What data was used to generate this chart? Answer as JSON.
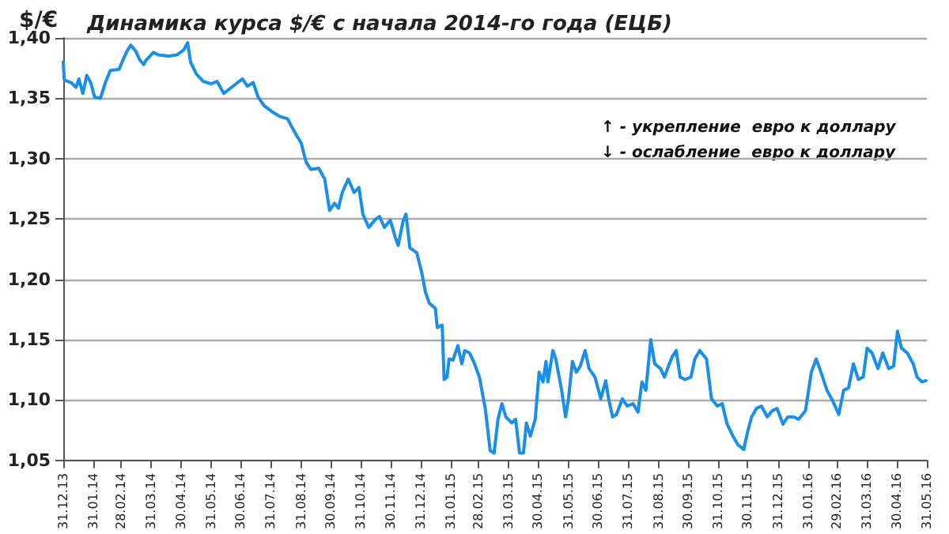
{
  "chart_data": {
    "type": "line",
    "title": "Динамика курса $/€ с начала 2014-го года (ЕЦБ)",
    "ylabel": "$/€",
    "annotations": [
      "↑ - укрепление  евро к доллару",
      "↓ - ослабление  евро к доллару"
    ],
    "x": [
      "2013-12-31",
      "2014-01-01",
      "2014-01-08",
      "2014-01-13",
      "2014-01-16",
      "2014-01-20",
      "2014-01-24",
      "2014-01-28",
      "2014-02-01",
      "2014-02-07",
      "2014-02-12",
      "2014-02-17",
      "2014-02-26",
      "2014-03-01",
      "2014-03-06",
      "2014-03-10",
      "2014-03-15",
      "2014-03-19",
      "2014-03-23",
      "2014-03-26",
      "2014-04-02",
      "2014-04-07",
      "2014-04-18",
      "2014-04-26",
      "2014-05-03",
      "2014-05-07",
      "2014-05-10",
      "2014-05-16",
      "2014-05-23",
      "2014-05-31",
      "2014-06-06",
      "2014-06-13",
      "2014-06-27",
      "2014-07-02",
      "2014-07-07",
      "2014-07-13",
      "2014-07-18",
      "2014-07-24",
      "2014-08-01",
      "2014-08-09",
      "2014-08-17",
      "2014-08-25",
      "2014-08-31",
      "2014-09-05",
      "2014-09-10",
      "2014-09-18",
      "2014-09-24",
      "2014-09-29",
      "2014-10-04",
      "2014-10-08",
      "2014-10-12",
      "2014-10-18",
      "2014-10-24",
      "2014-10-29",
      "2014-11-02",
      "2014-11-08",
      "2014-11-14",
      "2014-11-19",
      "2014-11-24",
      "2014-11-30",
      "2014-12-05",
      "2014-12-08",
      "2014-12-13",
      "2014-12-16",
      "2014-12-20",
      "2014-12-27",
      "2015-01-01",
      "2015-01-05",
      "2015-01-09",
      "2015-01-15",
      "2015-01-17",
      "2015-01-22",
      "2015-01-24",
      "2015-01-27",
      "2015-01-29",
      "2015-02-02",
      "2015-02-07",
      "2015-02-11",
      "2015-02-14",
      "2015-02-19",
      "2015-02-24",
      "2015-03-01",
      "2015-03-07",
      "2015-03-12",
      "2015-03-16",
      "2015-03-20",
      "2015-03-24",
      "2015-03-28",
      "2015-04-03",
      "2015-04-07",
      "2015-04-11",
      "2015-04-15",
      "2015-04-18",
      "2015-04-22",
      "2015-04-27",
      "2015-05-01",
      "2015-05-05",
      "2015-05-08",
      "2015-05-10",
      "2015-05-15",
      "2015-05-18",
      "2015-05-24",
      "2015-05-28",
      "2015-05-31",
      "2015-06-04",
      "2015-06-08",
      "2015-06-12",
      "2015-06-17",
      "2015-06-21",
      "2015-06-27",
      "2015-07-03",
      "2015-07-08",
      "2015-07-11",
      "2015-07-15",
      "2015-07-19",
      "2015-07-25",
      "2015-07-30",
      "2015-08-05",
      "2015-08-10",
      "2015-08-14",
      "2015-08-18",
      "2015-08-23",
      "2015-08-27",
      "2015-09-02",
      "2015-09-06",
      "2015-09-10",
      "2015-09-14",
      "2015-09-18",
      "2015-09-22",
      "2015-09-27",
      "2015-10-03",
      "2015-10-07",
      "2015-10-12",
      "2015-10-19",
      "2015-10-24",
      "2015-10-30",
      "2015-11-04",
      "2015-11-09",
      "2015-11-15",
      "2015-11-20",
      "2015-11-26",
      "2015-11-30",
      "2015-12-04",
      "2015-12-09",
      "2015-12-14",
      "2015-12-20",
      "2015-12-25",
      "2015-12-30",
      "2016-01-05",
      "2016-01-10",
      "2016-01-16",
      "2016-01-21",
      "2016-01-28",
      "2016-02-03",
      "2016-02-08",
      "2016-02-12",
      "2016-02-19",
      "2016-02-25",
      "2016-03-02",
      "2016-03-07",
      "2016-03-12",
      "2016-03-17",
      "2016-03-22",
      "2016-03-27",
      "2016-03-31",
      "2016-04-05",
      "2016-04-11",
      "2016-04-16",
      "2016-04-22",
      "2016-04-27",
      "2016-05-01",
      "2016-05-05",
      "2016-05-11",
      "2016-05-17",
      "2016-05-21",
      "2016-05-26",
      "2016-05-30"
    ],
    "series": [
      {
        "color": "#1a8fe8",
        "values": [
          1.38,
          1.365,
          1.363,
          1.359,
          1.366,
          1.354,
          1.369,
          1.363,
          1.351,
          1.35,
          1.363,
          1.373,
          1.374,
          1.38,
          1.389,
          1.394,
          1.389,
          1.382,
          1.378,
          1.382,
          1.388,
          1.386,
          1.385,
          1.386,
          1.39,
          1.396,
          1.38,
          1.37,
          1.364,
          1.362,
          1.364,
          1.354,
          1.363,
          1.366,
          1.36,
          1.363,
          1.351,
          1.344,
          1.339,
          1.335,
          1.333,
          1.321,
          1.313,
          1.297,
          1.291,
          1.292,
          1.283,
          1.257,
          1.263,
          1.259,
          1.272,
          1.283,
          1.272,
          1.276,
          1.254,
          1.243,
          1.249,
          1.252,
          1.243,
          1.249,
          1.235,
          1.228,
          1.248,
          1.254,
          1.226,
          1.222,
          1.206,
          1.189,
          1.18,
          1.176,
          1.16,
          1.162,
          1.117,
          1.119,
          1.134,
          1.133,
          1.145,
          1.13,
          1.141,
          1.139,
          1.13,
          1.119,
          1.093,
          1.058,
          1.056,
          1.084,
          1.097,
          1.086,
          1.081,
          1.084,
          1.056,
          1.056,
          1.081,
          1.07,
          1.084,
          1.123,
          1.115,
          1.132,
          1.115,
          1.141,
          1.134,
          1.108,
          1.086,
          1.101,
          1.132,
          1.123,
          1.128,
          1.141,
          1.126,
          1.119,
          1.101,
          1.116,
          1.101,
          1.086,
          1.088,
          1.101,
          1.095,
          1.097,
          1.09,
          1.115,
          1.108,
          1.15,
          1.13,
          1.126,
          1.119,
          1.128,
          1.136,
          1.141,
          1.119,
          1.117,
          1.119,
          1.134,
          1.141,
          1.134,
          1.101,
          1.095,
          1.097,
          1.08,
          1.07,
          1.063,
          1.059,
          1.074,
          1.086,
          1.093,
          1.095,
          1.086,
          1.091,
          1.093,
          1.08,
          1.086,
          1.086,
          1.084,
          1.091,
          1.123,
          1.134,
          1.125,
          1.108,
          1.099,
          1.088,
          1.108,
          1.11,
          1.13,
          1.117,
          1.119,
          1.143,
          1.139,
          1.126,
          1.139,
          1.126,
          1.128,
          1.157,
          1.143,
          1.139,
          1.13,
          1.119,
          1.115,
          1.116
        ]
      }
    ],
    "xlim": [
      "2013-12-31",
      "2016-05-31"
    ],
    "xticks": [
      {
        "value": "2013-12-31",
        "label": "31.12.13"
      },
      {
        "value": "2014-01-31",
        "label": "31.01.14"
      },
      {
        "value": "2014-02-28",
        "label": "28.02.14"
      },
      {
        "value": "2014-03-31",
        "label": "31.03.14"
      },
      {
        "value": "2014-04-30",
        "label": "30.04.14"
      },
      {
        "value": "2014-05-31",
        "label": "31.05.14"
      },
      {
        "value": "2014-06-30",
        "label": "30.06.14"
      },
      {
        "value": "2014-07-31",
        "label": "31.07.14"
      },
      {
        "value": "2014-08-31",
        "label": "31.08.14"
      },
      {
        "value": "2014-09-30",
        "label": "30.09.14"
      },
      {
        "value": "2014-10-31",
        "label": "31.10.14"
      },
      {
        "value": "2014-11-30",
        "label": "30.11.14"
      },
      {
        "value": "2014-12-31",
        "label": "31.12.14"
      },
      {
        "value": "2015-01-31",
        "label": "31.01.15"
      },
      {
        "value": "2015-02-28",
        "label": "28.02.15"
      },
      {
        "value": "2015-03-31",
        "label": "31.03.15"
      },
      {
        "value": "2015-04-30",
        "label": "30.04.15"
      },
      {
        "value": "2015-05-31",
        "label": "31.05.15"
      },
      {
        "value": "2015-06-30",
        "label": "30.06.15"
      },
      {
        "value": "2015-07-31",
        "label": "31.07.15"
      },
      {
        "value": "2015-08-31",
        "label": "31.08.15"
      },
      {
        "value": "2015-09-30",
        "label": "30.09.15"
      },
      {
        "value": "2015-10-31",
        "label": "31.10.15"
      },
      {
        "value": "2015-11-30",
        "label": "30.11.15"
      },
      {
        "value": "2015-12-31",
        "label": "31.12.15"
      },
      {
        "value": "2016-01-31",
        "label": "31.01.16"
      },
      {
        "value": "2016-02-29",
        "label": "29.02.16"
      },
      {
        "value": "2016-03-31",
        "label": "31.03.16"
      },
      {
        "value": "2016-04-30",
        "label": "30.04.16"
      },
      {
        "value": "2016-05-31",
        "label": "31.05.16"
      }
    ],
    "ylim": [
      1.05,
      1.4
    ],
    "yticks": [
      {
        "value": 1.05,
        "label": "1,05"
      },
      {
        "value": 1.1,
        "label": "1,10"
      },
      {
        "value": 1.15,
        "label": "1,15"
      },
      {
        "value": 1.2,
        "label": "1,20"
      },
      {
        "value": 1.25,
        "label": "1,25"
      },
      {
        "value": 1.3,
        "label": "1,30"
      },
      {
        "value": 1.35,
        "label": "1,35"
      },
      {
        "value": 1.4,
        "label": "1,40"
      }
    ],
    "grid": "y",
    "marker": "none",
    "line_style": "solid"
  }
}
